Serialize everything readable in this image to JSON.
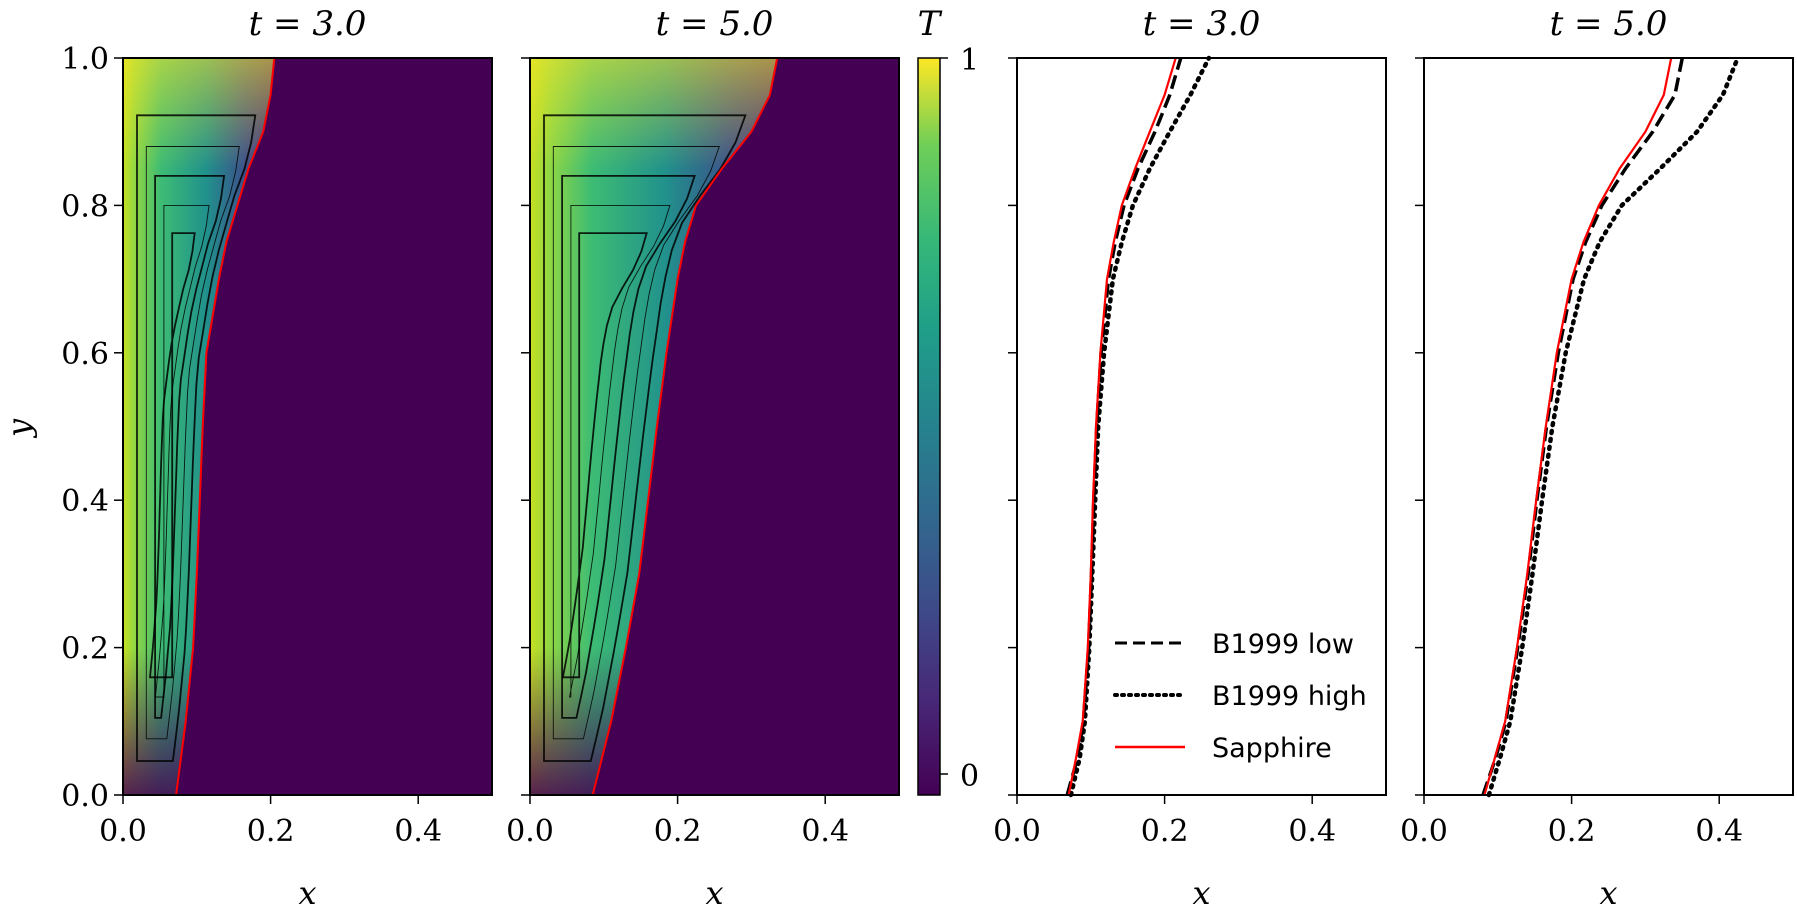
{
  "figure": {
    "colorbar": {
      "label": "T",
      "max_label": "1",
      "min_label": "0",
      "range": [
        0,
        1
      ]
    },
    "y_axis_label": "y",
    "x_axis_label": "x"
  },
  "chart_data": [
    {
      "type": "heatmap",
      "title": "t = 3.0",
      "xlabel": "x",
      "ylabel": "y",
      "xlim": [
        0,
        0.5
      ],
      "ylim": [
        0,
        1
      ],
      "xticks": [
        "0.0",
        "0.2",
        "0.4"
      ],
      "yticks": [
        "0.0",
        "0.2",
        "0.4",
        "0.6",
        "0.8",
        "1.0"
      ],
      "colormap": "viridis",
      "background_value": 0,
      "front_color": "#ff0000",
      "interface": {
        "y": [
          0,
          0.1,
          0.2,
          0.3,
          0.4,
          0.5,
          0.6,
          0.7,
          0.75,
          0.8,
          0.85,
          0.9,
          0.95,
          1.0
        ],
        "x": [
          0.072,
          0.085,
          0.095,
          0.1,
          0.104,
          0.108,
          0.113,
          0.13,
          0.14,
          0.155,
          0.17,
          0.19,
          0.2,
          0.205
        ]
      },
      "streamlines": "shown"
    },
    {
      "type": "heatmap",
      "title": "t = 5.0",
      "xlabel": "x",
      "xlim": [
        0,
        0.5
      ],
      "ylim": [
        0,
        1
      ],
      "xticks": [
        "0.0",
        "0.2",
        "0.4"
      ],
      "colormap": "viridis",
      "background_value": 0,
      "front_color": "#ff0000",
      "interface": {
        "y": [
          0,
          0.1,
          0.2,
          0.3,
          0.4,
          0.5,
          0.6,
          0.7,
          0.75,
          0.8,
          0.85,
          0.9,
          0.95,
          1.0
        ],
        "x": [
          0.085,
          0.11,
          0.13,
          0.148,
          0.16,
          0.172,
          0.185,
          0.2,
          0.21,
          0.225,
          0.26,
          0.3,
          0.325,
          0.335
        ]
      },
      "streamlines": "shown"
    },
    {
      "type": "line",
      "title": "t = 3.0",
      "xlabel": "x",
      "xlim": [
        0,
        0.5
      ],
      "ylim": [
        0,
        1
      ],
      "xticks": [
        "0.0",
        "0.2",
        "0.4"
      ],
      "legend": "lower-right",
      "series": [
        {
          "name": "B1999 low",
          "style": "dashed",
          "color": "#000000",
          "y": [
            0,
            0.05,
            0.1,
            0.2,
            0.3,
            0.4,
            0.5,
            0.6,
            0.7,
            0.75,
            0.8,
            0.85,
            0.9,
            0.95,
            1.0
          ],
          "x": [
            0.068,
            0.082,
            0.09,
            0.097,
            0.101,
            0.104,
            0.108,
            0.114,
            0.124,
            0.133,
            0.145,
            0.164,
            0.187,
            0.207,
            0.222
          ]
        },
        {
          "name": "B1999 high",
          "style": "dotted",
          "color": "#000000",
          "y": [
            0,
            0.05,
            0.1,
            0.2,
            0.3,
            0.4,
            0.5,
            0.6,
            0.7,
            0.75,
            0.8,
            0.85,
            0.9,
            0.95,
            1.0
          ],
          "x": [
            0.073,
            0.085,
            0.092,
            0.098,
            0.102,
            0.106,
            0.11,
            0.118,
            0.13,
            0.142,
            0.157,
            0.18,
            0.207,
            0.235,
            0.26
          ]
        },
        {
          "name": "Sapphire",
          "style": "solid",
          "color": "#ff0000",
          "y": [
            0,
            0.05,
            0.1,
            0.2,
            0.3,
            0.4,
            0.5,
            0.6,
            0.7,
            0.75,
            0.8,
            0.85,
            0.9,
            0.95,
            1.0
          ],
          "x": [
            0.07,
            0.08,
            0.089,
            0.096,
            0.1,
            0.103,
            0.107,
            0.113,
            0.122,
            0.131,
            0.142,
            0.16,
            0.18,
            0.2,
            0.215
          ]
        }
      ]
    },
    {
      "type": "line",
      "title": "t = 5.0",
      "xlabel": "x",
      "xlim": [
        0,
        0.5
      ],
      "ylim": [
        0,
        1
      ],
      "xticks": [
        "0.0",
        "0.2",
        "0.4"
      ],
      "series": [
        {
          "name": "B1999 low",
          "style": "dashed",
          "color": "#000000",
          "y": [
            0,
            0.05,
            0.1,
            0.2,
            0.3,
            0.4,
            0.5,
            0.6,
            0.7,
            0.75,
            0.8,
            0.85,
            0.9,
            0.95,
            1.0
          ],
          "x": [
            0.08,
            0.097,
            0.111,
            0.127,
            0.141,
            0.153,
            0.166,
            0.182,
            0.202,
            0.219,
            0.241,
            0.273,
            0.31,
            0.34,
            0.35
          ]
        },
        {
          "name": "B1999 high",
          "style": "dotted",
          "color": "#000000",
          "y": [
            0,
            0.05,
            0.1,
            0.2,
            0.3,
            0.4,
            0.5,
            0.6,
            0.7,
            0.75,
            0.8,
            0.85,
            0.9,
            0.95,
            1.0
          ],
          "x": [
            0.088,
            0.103,
            0.117,
            0.133,
            0.147,
            0.16,
            0.174,
            0.192,
            0.217,
            0.238,
            0.268,
            0.32,
            0.37,
            0.405,
            0.425
          ]
        },
        {
          "name": "Sapphire",
          "style": "solid",
          "color": "#ff0000",
          "y": [
            0,
            0.05,
            0.1,
            0.2,
            0.3,
            0.4,
            0.5,
            0.6,
            0.7,
            0.75,
            0.8,
            0.85,
            0.9,
            0.95,
            1.0
          ],
          "x": [
            0.082,
            0.096,
            0.11,
            0.126,
            0.14,
            0.152,
            0.165,
            0.18,
            0.2,
            0.216,
            0.237,
            0.265,
            0.3,
            0.325,
            0.335
          ]
        }
      ]
    }
  ]
}
